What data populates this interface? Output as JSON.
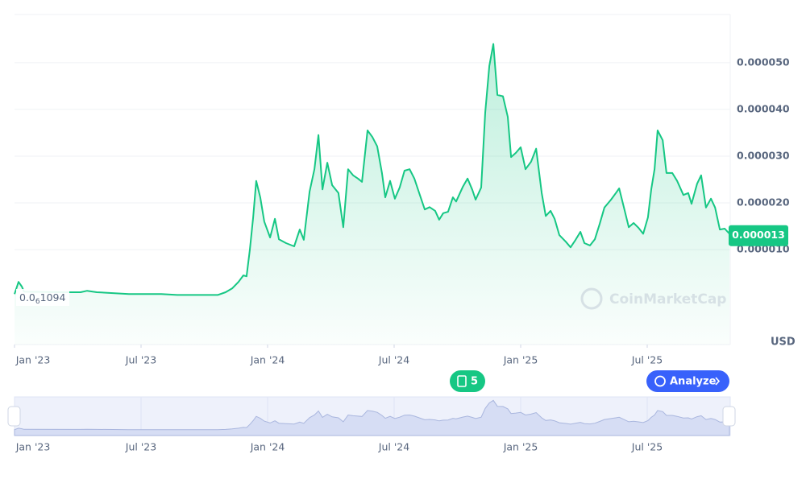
{
  "chart_data": {
    "type": "line",
    "color": "#16c784",
    "x": [
      2023,
      2023.016,
      2023.029,
      2023.038,
      2023.223,
      2023.261,
      2023.287,
      2023.325,
      2023.389,
      2023.452,
      2023.516,
      2023.58,
      2023.643,
      2023.707,
      2023.803,
      2023.834,
      2023.86,
      2023.885,
      2023.904,
      2023.917,
      2023.93,
      2023.943,
      2023.955,
      2023.971,
      2023.987,
      2024.01,
      2024.029,
      2024.045,
      2024.073,
      2024.105,
      2024.127,
      2024.143,
      2024.166,
      2024.185,
      2024.201,
      2024.217,
      2024.236,
      2024.255,
      2024.28,
      2024.299,
      2024.318,
      2024.338,
      2024.357,
      2024.373,
      2024.395,
      2024.414,
      2024.433,
      2024.452,
      2024.465,
      2024.484,
      2024.503,
      2024.522,
      2024.541,
      2024.561,
      2024.58,
      2024.599,
      2024.621,
      2024.64,
      2024.662,
      2024.678,
      2024.694,
      2024.713,
      2024.732,
      2024.745,
      2024.771,
      2024.79,
      2024.809,
      2024.822,
      2024.844,
      2024.86,
      2024.876,
      2024.892,
      2024.908,
      2024.93,
      2024.949,
      2024.962,
      2024.981,
      2025,
      2025.019,
      2025.041,
      2025.061,
      2025.083,
      2025.099,
      2025.118,
      2025.134,
      2025.153,
      2025.178,
      2025.197,
      2025.217,
      2025.236,
      2025.252,
      2025.274,
      2025.293,
      2025.312,
      2025.331,
      2025.357,
      2025.376,
      2025.389,
      2025.408,
      2025.427,
      2025.446,
      2025.465,
      2025.484,
      2025.503,
      2025.516,
      2025.529,
      2025.541,
      2025.561,
      2025.576,
      2025.599,
      2025.618,
      2025.643,
      2025.662,
      2025.675,
      2025.697,
      2025.713,
      2025.732,
      2025.752,
      2025.768,
      2025.787,
      2025.806,
      2025.825
    ],
    "values": [
      5e-07,
      3.1e-06,
      2.1e-06,
      1e-06,
      9e-07,
      9e-07,
      1.2e-06,
      9e-07,
      7e-07,
      5e-07,
      5e-07,
      5e-07,
      3e-07,
      3e-07,
      3e-07,
      9e-07,
      1.7e-06,
      3.1e-06,
      4.5e-06,
      4.3e-06,
      1e-05,
      1.69e-05,
      2.47e-05,
      2.12e-05,
      1.6e-05,
      1.26e-05,
      1.66e-05,
      1.22e-05,
      1.14e-05,
      1.07e-05,
      1.43e-05,
      1.21e-05,
      2.24e-05,
      2.72e-05,
      3.45e-05,
      2.29e-05,
      2.86e-05,
      2.38e-05,
      2.21e-05,
      1.48e-05,
      2.72e-05,
      2.59e-05,
      2.52e-05,
      2.45e-05,
      3.55e-05,
      3.41e-05,
      3.21e-05,
      2.64e-05,
      2.12e-05,
      2.47e-05,
      2.09e-05,
      2.33e-05,
      2.69e-05,
      2.72e-05,
      2.52e-05,
      2.21e-05,
      1.86e-05,
      1.91e-05,
      1.83e-05,
      1.64e-05,
      1.78e-05,
      1.81e-05,
      2.12e-05,
      2.03e-05,
      2.34e-05,
      2.52e-05,
      2.28e-05,
      2.07e-05,
      2.33e-05,
      3.93e-05,
      4.93e-05,
      5.4e-05,
      4.31e-05,
      4.28e-05,
      3.84e-05,
      2.98e-05,
      3.07e-05,
      3.19e-05,
      2.72e-05,
      2.88e-05,
      3.16e-05,
      2.21e-05,
      1.72e-05,
      1.83e-05,
      1.66e-05,
      1.31e-05,
      1.17e-05,
      1.05e-05,
      1.21e-05,
      1.38e-05,
      1.14e-05,
      1.09e-05,
      1.22e-05,
      1.55e-05,
      1.9e-05,
      2.07e-05,
      2.21e-05,
      2.31e-05,
      1.9e-05,
      1.48e-05,
      1.57e-05,
      1.47e-05,
      1.34e-05,
      1.69e-05,
      2.29e-05,
      2.72e-05,
      3.55e-05,
      3.34e-05,
      2.64e-05,
      2.64e-05,
      2.47e-05,
      2.17e-05,
      2.21e-05,
      1.98e-05,
      2.41e-05,
      2.59e-05,
      1.9e-05,
      2.09e-05,
      1.9e-05,
      1.43e-05,
      1.45e-05,
      1.34e-05
    ],
    "xlim": [
      2023,
      2025.828
    ],
    "xticks": [
      {
        "value": 2023,
        "label": "Jan '23"
      },
      {
        "value": 2023.5,
        "label": "Jul '23"
      },
      {
        "value": 2024,
        "label": "Jan '24"
      },
      {
        "value": 2024.5,
        "label": "Jul '24"
      },
      {
        "value": 2025,
        "label": "Jan '25"
      },
      {
        "value": 2025.5,
        "label": "Jul '25"
      }
    ],
    "ylim": [
      -1.03e-05,
      6.03e-05
    ],
    "yticks": [
      {
        "value": 1e-05,
        "label": "0.000010"
      },
      {
        "value": 2e-05,
        "label": "0.000020"
      },
      {
        "value": 3e-05,
        "label": "0.000030"
      },
      {
        "value": 4e-05,
        "label": "0.000040"
      },
      {
        "value": 5e-05,
        "label": "0.000050"
      }
    ],
    "grid": true,
    "current_price": {
      "value": 1.3e-05,
      "label": "0.000013"
    },
    "low_label": [
      "0.0",
      "6",
      "1094"
    ],
    "currency": "USD",
    "watermark": "CoinMarketCap",
    "notes_count": "5",
    "analyze_button": "Analyze"
  }
}
